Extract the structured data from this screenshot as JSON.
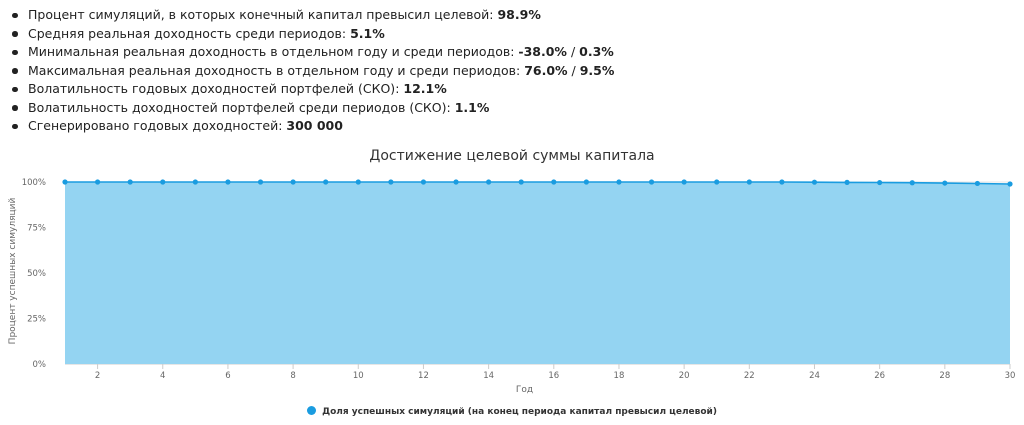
{
  "stats": [
    {
      "label": "Процент симуляций, в которых конечный капитал превысил целевой: ",
      "value": "98.9%"
    },
    {
      "label": "Средняя реальная доходность среди периодов: ",
      "value": "5.1%"
    },
    {
      "label": "Минимальная реальная доходность в отдельном году и среди периодов: ",
      "value": "-38.0%",
      "sep": " / ",
      "value2": "0.3%"
    },
    {
      "label": "Максимальная реальная доходность в отдельном году и среди периодов: ",
      "value": "76.0%",
      "sep": " / ",
      "value2": "9.5%"
    },
    {
      "label": "Волатильность годовых доходностей портфелей (СКО): ",
      "value": "12.1%"
    },
    {
      "label": "Волатильность доходностей портфелей среди периодов (СКО): ",
      "value": "1.1%"
    },
    {
      "label": "Сгенерировано годовых доходностей: ",
      "value": "300 000"
    }
  ],
  "colors": {
    "line": "#1a9ce0",
    "area": "#94d4f2",
    "grid": "#e6e6e6",
    "axis": "#cccccc"
  },
  "chart_data": {
    "type": "area",
    "title": "Достижение целевой суммы капитала",
    "xlabel": "Год",
    "ylabel": "Процент успешных симуляций",
    "x": [
      1,
      2,
      3,
      4,
      5,
      6,
      7,
      8,
      9,
      10,
      11,
      12,
      13,
      14,
      15,
      16,
      17,
      18,
      19,
      20,
      21,
      22,
      23,
      24,
      25,
      26,
      27,
      28,
      29,
      30
    ],
    "xticks": [
      2,
      4,
      6,
      8,
      10,
      12,
      14,
      16,
      18,
      20,
      22,
      24,
      26,
      28,
      30
    ],
    "yticks": [
      0,
      25,
      50,
      75,
      100
    ],
    "ytick_labels": [
      "0%",
      "25%",
      "50%",
      "75%",
      "100%"
    ],
    "xlim": [
      1,
      30
    ],
    "ylim": [
      0,
      100
    ],
    "grid": "horizontal",
    "legend_position": "bottom-center",
    "series": [
      {
        "name": "Доля успешных симуляций (на конец периода капитал превысил целевой)",
        "values": [
          100,
          100,
          100,
          100,
          100,
          100,
          100,
          100,
          100,
          100,
          100,
          100,
          100,
          100,
          100,
          100,
          100,
          100,
          100,
          100,
          100,
          100,
          100,
          99.9,
          99.8,
          99.7,
          99.6,
          99.4,
          99.2,
          98.9
        ]
      }
    ]
  }
}
